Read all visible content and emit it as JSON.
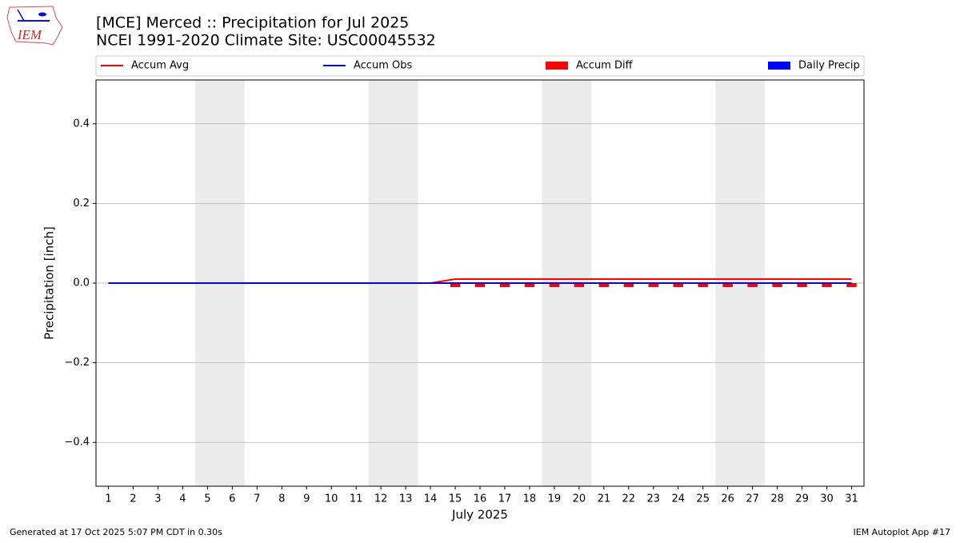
{
  "logo_text": "IEM",
  "chart_data": {
    "type": "line",
    "title": "[MCE] Merced :: Precipitation for Jul 2025",
    "subtitle": "NCEI 1991-2020 Climate Site: USC00045532",
    "x_label": "July 2025",
    "y_label": "Precipitation [inch]",
    "x": [
      1,
      2,
      3,
      4,
      5,
      6,
      7,
      8,
      9,
      10,
      11,
      12,
      13,
      14,
      15,
      16,
      17,
      18,
      19,
      20,
      21,
      22,
      23,
      24,
      25,
      26,
      27,
      28,
      29,
      30,
      31
    ],
    "xlim": [
      0.5,
      31.5
    ],
    "xticks": [
      1,
      2,
      3,
      4,
      5,
      6,
      7,
      8,
      9,
      10,
      11,
      12,
      13,
      14,
      15,
      16,
      17,
      18,
      19,
      20,
      21,
      22,
      23,
      24,
      25,
      26,
      27,
      28,
      29,
      30,
      31
    ],
    "ylim": [
      -0.51,
      0.51
    ],
    "yticks": [
      {
        "value": -0.4,
        "label": "−0.4"
      },
      {
        "value": -0.2,
        "label": "−0.2"
      },
      {
        "value": 0,
        "label": "0.0"
      },
      0.2,
      0.4
    ],
    "grid": true,
    "shaded_x_ranges": [
      [
        4.5,
        6.5
      ],
      [
        11.5,
        13.5
      ],
      [
        18.5,
        20.5
      ],
      [
        25.5,
        27.5
      ]
    ],
    "shade_color": "#ececec",
    "legend_position": "top",
    "series": [
      {
        "name": "Accum Avg",
        "type": "line",
        "color": "#ff0000",
        "values": [
          0,
          0,
          0,
          0,
          0,
          0,
          0,
          0,
          0,
          0,
          0,
          0,
          0,
          0,
          0.01,
          0.01,
          0.01,
          0.01,
          0.01,
          0.01,
          0.01,
          0.01,
          0.01,
          0.01,
          0.01,
          0.01,
          0.01,
          0.01,
          0.01,
          0.01,
          0.01
        ]
      },
      {
        "name": "Accum Obs",
        "type": "line",
        "color": "#0000ff",
        "values": [
          0,
          0,
          0,
          0,
          0,
          0,
          0,
          0,
          0,
          0,
          0,
          0,
          0,
          0,
          0,
          0,
          0,
          0,
          0,
          0,
          0,
          0,
          0,
          0,
          0,
          0,
          0,
          0,
          0,
          0,
          0
        ]
      },
      {
        "name": "Accum Diff",
        "type": "bar",
        "color": "#ff0000",
        "values": [
          0,
          0,
          0,
          0,
          0,
          0,
          0,
          0,
          0,
          0,
          0,
          0,
          0,
          0,
          -0.01,
          -0.01,
          -0.01,
          -0.01,
          -0.01,
          -0.01,
          -0.01,
          -0.01,
          -0.01,
          -0.01,
          -0.01,
          -0.01,
          -0.01,
          -0.01,
          -0.01,
          -0.01,
          -0.01
        ]
      },
      {
        "name": "Daily Precip",
        "type": "bar",
        "color": "#0000ff",
        "values": [
          0,
          0,
          0,
          0,
          0,
          0,
          0,
          0,
          0,
          0,
          0,
          0,
          0,
          0,
          0,
          0,
          0,
          0,
          0,
          0,
          0,
          0,
          0,
          0,
          0,
          0,
          0,
          0,
          0,
          0,
          0
        ]
      }
    ],
    "footer_left": "Generated at 17 Oct 2025 5:07 PM CDT in 0.30s",
    "footer_right": "IEM Autoplot App #17"
  }
}
